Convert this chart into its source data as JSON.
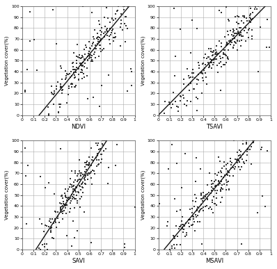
{
  "subplots": [
    {
      "xlabel": "NDVI",
      "line_x": [
        0.15,
        0.95
      ],
      "line_y": [
        0,
        100
      ]
    },
    {
      "xlabel": "TSAVI",
      "line_x": [
        0.0,
        0.95
      ],
      "line_y": [
        0,
        100
      ]
    },
    {
      "xlabel": "SAVI",
      "line_x": [
        0.12,
        0.75
      ],
      "line_y": [
        0,
        100
      ]
    },
    {
      "xlabel": "MSAVI",
      "line_x": [
        0.05,
        0.85
      ],
      "line_y": [
        0,
        100
      ]
    }
  ],
  "ylabel": "Vegetation cover(%)",
  "xlim": [
    0,
    1
  ],
  "ylim": [
    0,
    100
  ],
  "yticks": [
    0,
    10,
    20,
    30,
    40,
    50,
    60,
    70,
    80,
    90,
    100
  ],
  "xticks": [
    0,
    0.1,
    0.2,
    0.3,
    0.4,
    0.5,
    0.6,
    0.7,
    0.8,
    0.9,
    1
  ],
  "xtick_labels": [
    "0",
    "0.1",
    "0.2",
    "0.3",
    "0.4",
    "0.5",
    "0.6",
    "0.7",
    "0.8",
    "0.9",
    "1"
  ],
  "ytick_labels": [
    "0",
    "10",
    "20",
    "30",
    "40",
    "50",
    "60",
    "70",
    "80",
    "90",
    "100"
  ],
  "marker_color": "#333333",
  "line_color": "#111111",
  "background_color": "#ffffff",
  "grid_color": "#aaaaaa"
}
